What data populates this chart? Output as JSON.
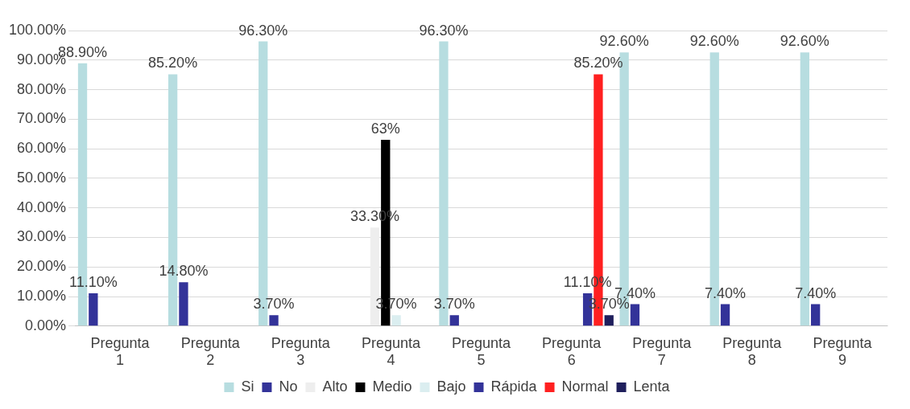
{
  "chart_data": {
    "type": "bar",
    "categories": [
      "Pregunta 1",
      "Pregunta 2",
      "Pregunta 3",
      "Pregunta 4",
      "Pregunta 5",
      "Pregunta 6",
      "Pregunta 7",
      "Pregunta 8",
      "Pregunta 9"
    ],
    "series": [
      {
        "name": "Si",
        "color": "#b7dde0",
        "values": [
          88.9,
          85.2,
          96.3,
          null,
          96.3,
          null,
          92.6,
          92.6,
          92.6
        ],
        "value_labels": [
          "88.90%",
          "85.20%",
          "96.30%",
          null,
          "96.30%",
          null,
          "92.60%",
          "92.60%",
          "92.60%"
        ]
      },
      {
        "name": "No",
        "color": "#333399",
        "values": [
          11.1,
          14.8,
          3.7,
          null,
          3.7,
          null,
          7.4,
          7.4,
          7.4
        ],
        "value_labels": [
          "11.10%",
          "14.80%",
          "3.70%",
          null,
          "3.70%",
          null,
          "7.40%",
          "7.40%",
          "7.40%"
        ]
      },
      {
        "name": "Alto",
        "color": "#eeeeee",
        "values": [
          null,
          null,
          null,
          33.3,
          null,
          null,
          null,
          null,
          null
        ],
        "value_labels": [
          null,
          null,
          null,
          "33.30%",
          null,
          null,
          null,
          null,
          null
        ]
      },
      {
        "name": "Medio",
        "color": "#000000",
        "values": [
          null,
          null,
          null,
          63,
          null,
          null,
          null,
          null,
          null
        ],
        "value_labels": [
          null,
          null,
          null,
          "63%",
          null,
          null,
          null,
          null,
          null
        ]
      },
      {
        "name": "Bajo",
        "color": "#dbeef0",
        "values": [
          null,
          null,
          null,
          3.7,
          null,
          null,
          null,
          null,
          null
        ],
        "value_labels": [
          null,
          null,
          null,
          "3.70%",
          null,
          null,
          null,
          null,
          null
        ]
      },
      {
        "name": "Rápida",
        "color": "#333399",
        "values": [
          null,
          null,
          null,
          null,
          null,
          11.1,
          null,
          null,
          null
        ],
        "value_labels": [
          null,
          null,
          null,
          null,
          null,
          "11.10%",
          null,
          null,
          null
        ]
      },
      {
        "name": "Normal",
        "color": "#ff2020",
        "values": [
          null,
          null,
          null,
          null,
          null,
          85.2,
          null,
          null,
          null
        ],
        "value_labels": [
          null,
          null,
          null,
          null,
          null,
          "85.20%",
          null,
          null,
          null
        ]
      },
      {
        "name": "Lenta",
        "color": "#1f1f5c",
        "values": [
          null,
          null,
          null,
          null,
          null,
          3.7,
          null,
          null,
          null
        ],
        "value_labels": [
          null,
          null,
          null,
          null,
          null,
          "3.70%",
          null,
          null,
          null
        ]
      }
    ],
    "ylim": [
      0,
      100
    ],
    "yticks": [
      {
        "value": 0,
        "label": "0.00%"
      },
      {
        "value": 10,
        "label": "10.00%"
      },
      {
        "value": 20,
        "label": "20.00%"
      },
      {
        "value": 30,
        "label": "30.00%"
      },
      {
        "value": 40,
        "label": "40.00%"
      },
      {
        "value": 50,
        "label": "50.00%"
      },
      {
        "value": 60,
        "label": "60.00%"
      },
      {
        "value": 70,
        "label": "70.00%"
      },
      {
        "value": 80,
        "label": "80.00%"
      },
      {
        "value": 90,
        "label": "90.00%"
      },
      {
        "value": 100,
        "label": "100.00%"
      }
    ],
    "grid": "y",
    "legend": "bottom"
  }
}
